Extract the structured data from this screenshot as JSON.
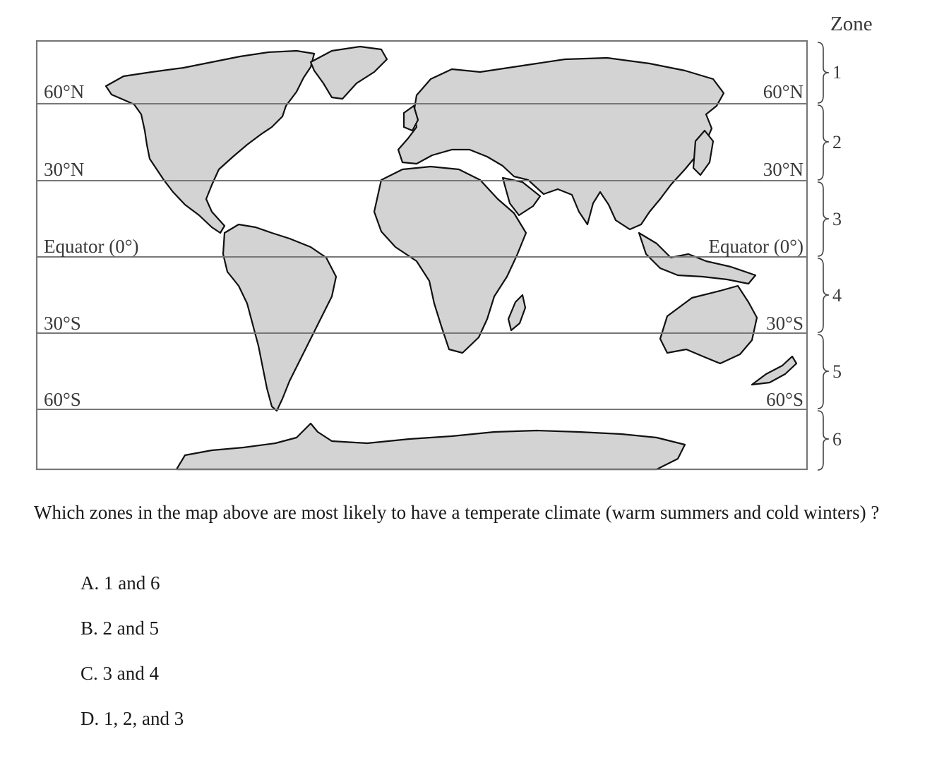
{
  "map": {
    "zone_heading": "Zone",
    "left_labels": [
      "60°N",
      "30°N",
      "Equator (0°)",
      "30°S",
      "60°S"
    ],
    "right_labels": [
      "60°N",
      "30°N",
      "Equator (0°)",
      "30°S",
      "60°S"
    ],
    "zones": [
      "1",
      "2",
      "3",
      "4",
      "5",
      "6"
    ]
  },
  "question": {
    "text": "Which zones in the map above are most likely to have a temperate climate (warm summers and cold winters) ?"
  },
  "options": [
    {
      "label": "A. 1 and 6"
    },
    {
      "label": "B. 2 and 5"
    },
    {
      "label": "C. 3 and 4"
    },
    {
      "label": "D. 1, 2, and 3"
    }
  ]
}
